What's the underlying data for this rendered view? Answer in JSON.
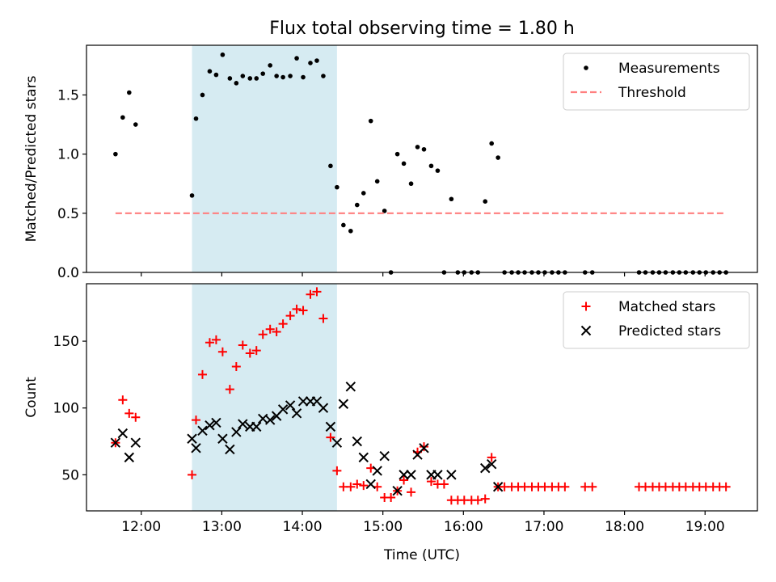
{
  "chart_data": [
    {
      "type": "scatter",
      "title": "Flux total observing time = 1.80 h",
      "xlabel": "",
      "ylabel": "Matched/Predicted stars",
      "ylim": [
        0,
        1.92
      ],
      "yticks": [
        0.0,
        0.5,
        1.0,
        1.5
      ],
      "ytick_labels": [
        "0.0",
        "0.5",
        "1.0",
        "1.5"
      ],
      "shaded_region": {
        "x": [
          12.63,
          14.43
        ],
        "color": "#add8e6"
      },
      "legend_position": "upper right",
      "series": [
        {
          "name": "Measurements",
          "marker": "dot",
          "color": "#000000",
          "points": [
            [
              11.68,
              1.0
            ],
            [
              11.77,
              1.31
            ],
            [
              11.85,
              1.52
            ],
            [
              11.93,
              1.25
            ],
            [
              12.63,
              0.65
            ],
            [
              12.68,
              1.3
            ],
            [
              12.76,
              1.5
            ],
            [
              12.85,
              1.7
            ],
            [
              12.93,
              1.67
            ],
            [
              13.01,
              1.84
            ],
            [
              13.1,
              1.64
            ],
            [
              13.18,
              1.6
            ],
            [
              13.26,
              1.66
            ],
            [
              13.35,
              1.64
            ],
            [
              13.43,
              1.64
            ],
            [
              13.51,
              1.68
            ],
            [
              13.6,
              1.75
            ],
            [
              13.68,
              1.66
            ],
            [
              13.76,
              1.65
            ],
            [
              13.85,
              1.66
            ],
            [
              13.93,
              1.81
            ],
            [
              14.01,
              1.65
            ],
            [
              14.1,
              1.77
            ],
            [
              14.18,
              1.79
            ],
            [
              14.26,
              1.66
            ],
            [
              14.35,
              0.9
            ],
            [
              14.43,
              0.72
            ],
            [
              14.51,
              0.4
            ],
            [
              14.6,
              0.35
            ],
            [
              14.68,
              0.57
            ],
            [
              14.76,
              0.67
            ],
            [
              14.85,
              1.28
            ],
            [
              14.93,
              0.77
            ],
            [
              15.02,
              0.52
            ],
            [
              15.1,
              0.0
            ],
            [
              15.18,
              1.0
            ],
            [
              15.26,
              0.92
            ],
            [
              15.35,
              0.75
            ],
            [
              15.43,
              1.06
            ],
            [
              15.51,
              1.04
            ],
            [
              15.6,
              0.9
            ],
            [
              15.68,
              0.86
            ],
            [
              15.76,
              0.0
            ],
            [
              15.85,
              0.62
            ],
            [
              15.93,
              0.0
            ],
            [
              16.01,
              0.0
            ],
            [
              16.1,
              0.0
            ],
            [
              16.18,
              0.0
            ],
            [
              16.27,
              0.6
            ],
            [
              16.35,
              1.09
            ],
            [
              16.43,
              0.97
            ],
            [
              16.51,
              0.0
            ],
            [
              16.6,
              0.0
            ],
            [
              16.68,
              0.0
            ],
            [
              16.76,
              0.0
            ],
            [
              16.85,
              0.0
            ],
            [
              16.93,
              0.0
            ],
            [
              17.01,
              0.0
            ],
            [
              17.1,
              0.0
            ],
            [
              17.18,
              0.0
            ],
            [
              17.26,
              0.0
            ],
            [
              17.51,
              0.0
            ],
            [
              17.6,
              0.0
            ],
            [
              18.18,
              0.0
            ],
            [
              18.26,
              0.0
            ],
            [
              18.35,
              0.0
            ],
            [
              18.43,
              0.0
            ],
            [
              18.51,
              0.0
            ],
            [
              18.6,
              0.0
            ],
            [
              18.68,
              0.0
            ],
            [
              18.76,
              0.0
            ],
            [
              18.85,
              0.0
            ],
            [
              18.93,
              0.0
            ],
            [
              19.01,
              0.0
            ],
            [
              19.1,
              0.0
            ],
            [
              19.18,
              0.0
            ],
            [
              19.26,
              0.0
            ]
          ]
        },
        {
          "name": "Threshold",
          "marker": "dashed-line",
          "color": "#ff7f7f",
          "points": [
            [
              11.68,
              0.5
            ],
            [
              19.26,
              0.5
            ]
          ]
        }
      ]
    },
    {
      "type": "scatter",
      "title": "",
      "xlabel": "Time (UTC)",
      "ylabel": "Count",
      "ylim": [
        23,
        193
      ],
      "yticks": [
        50,
        100,
        150
      ],
      "ytick_labels": [
        "50",
        "100",
        "150"
      ],
      "xlim": [
        11.32,
        19.65
      ],
      "xticks": [
        12,
        13,
        14,
        15,
        16,
        17,
        18,
        19
      ],
      "xtick_labels": [
        "12:00",
        "13:00",
        "14:00",
        "15:00",
        "16:00",
        "17:00",
        "18:00",
        "19:00"
      ],
      "shaded_region": {
        "x": [
          12.63,
          14.43
        ],
        "color": "#add8e6"
      },
      "legend_position": "upper right",
      "series": [
        {
          "name": "Matched stars",
          "marker": "plus",
          "color": "#ff0000",
          "points": [
            [
              11.68,
              74
            ],
            [
              11.77,
              106
            ],
            [
              11.85,
              96
            ],
            [
              11.93,
              93
            ],
            [
              12.63,
              50
            ],
            [
              12.68,
              91
            ],
            [
              12.76,
              125
            ],
            [
              12.85,
              149
            ],
            [
              12.93,
              151
            ],
            [
              13.01,
              142
            ],
            [
              13.1,
              114
            ],
            [
              13.18,
              131
            ],
            [
              13.26,
              147
            ],
            [
              13.35,
              141
            ],
            [
              13.43,
              143
            ],
            [
              13.51,
              155
            ],
            [
              13.6,
              159
            ],
            [
              13.68,
              157
            ],
            [
              13.76,
              163
            ],
            [
              13.85,
              169
            ],
            [
              13.93,
              174
            ],
            [
              14.01,
              173
            ],
            [
              14.1,
              185
            ],
            [
              14.18,
              187
            ],
            [
              14.26,
              167
            ],
            [
              14.35,
              78
            ],
            [
              14.43,
              53
            ],
            [
              14.51,
              41
            ],
            [
              14.6,
              41
            ],
            [
              14.68,
              43
            ],
            [
              14.76,
              42
            ],
            [
              14.85,
              55
            ],
            [
              14.93,
              41
            ],
            [
              15.02,
              33
            ],
            [
              15.1,
              33
            ],
            [
              15.18,
              38
            ],
            [
              15.26,
              46
            ],
            [
              15.35,
              37
            ],
            [
              15.43,
              67
            ],
            [
              15.51,
              71
            ],
            [
              15.6,
              45
            ],
            [
              15.68,
              43
            ],
            [
              15.76,
              43
            ],
            [
              15.85,
              31
            ],
            [
              15.93,
              31
            ],
            [
              16.01,
              31
            ],
            [
              16.1,
              31
            ],
            [
              16.18,
              31
            ],
            [
              16.27,
              32
            ],
            [
              16.35,
              63
            ],
            [
              16.43,
              41
            ],
            [
              16.51,
              41
            ],
            [
              16.6,
              41
            ],
            [
              16.68,
              41
            ],
            [
              16.76,
              41
            ],
            [
              16.85,
              41
            ],
            [
              16.93,
              41
            ],
            [
              17.01,
              41
            ],
            [
              17.1,
              41
            ],
            [
              17.18,
              41
            ],
            [
              17.26,
              41
            ],
            [
              17.51,
              41
            ],
            [
              17.6,
              41
            ],
            [
              18.18,
              41
            ],
            [
              18.26,
              41
            ],
            [
              18.35,
              41
            ],
            [
              18.43,
              41
            ],
            [
              18.51,
              41
            ],
            [
              18.6,
              41
            ],
            [
              18.68,
              41
            ],
            [
              18.76,
              41
            ],
            [
              18.85,
              41
            ],
            [
              18.93,
              41
            ],
            [
              19.01,
              41
            ],
            [
              19.1,
              41
            ],
            [
              19.18,
              41
            ],
            [
              19.26,
              41
            ]
          ]
        },
        {
          "name": "Predicted stars",
          "marker": "x",
          "color": "#000000",
          "points": [
            [
              11.68,
              74
            ],
            [
              11.77,
              81
            ],
            [
              11.85,
              63
            ],
            [
              11.93,
              74
            ],
            [
              12.63,
              77
            ],
            [
              12.68,
              70
            ],
            [
              12.76,
              83
            ],
            [
              12.85,
              87
            ],
            [
              12.93,
              89
            ],
            [
              13.01,
              77
            ],
            [
              13.1,
              69
            ],
            [
              13.18,
              82
            ],
            [
              13.26,
              88
            ],
            [
              13.35,
              86
            ],
            [
              13.43,
              86
            ],
            [
              13.51,
              92
            ],
            [
              13.6,
              91
            ],
            [
              13.68,
              94
            ],
            [
              13.76,
              99
            ],
            [
              13.85,
              102
            ],
            [
              13.93,
              96
            ],
            [
              14.01,
              105
            ],
            [
              14.1,
              105
            ],
            [
              14.18,
              105
            ],
            [
              14.26,
              100
            ],
            [
              14.35,
              86
            ],
            [
              14.43,
              74
            ],
            [
              14.51,
              103
            ],
            [
              14.6,
              116
            ],
            [
              14.68,
              75
            ],
            [
              14.76,
              63
            ],
            [
              14.85,
              43
            ],
            [
              14.93,
              53
            ],
            [
              15.02,
              64
            ],
            [
              15.18,
              38
            ],
            [
              15.26,
              50
            ],
            [
              15.35,
              50
            ],
            [
              15.43,
              65
            ],
            [
              15.51,
              70
            ],
            [
              15.6,
              50
            ],
            [
              15.68,
              50
            ],
            [
              15.85,
              50
            ],
            [
              16.27,
              55
            ],
            [
              16.35,
              58
            ],
            [
              16.43,
              41
            ]
          ]
        }
      ]
    }
  ]
}
